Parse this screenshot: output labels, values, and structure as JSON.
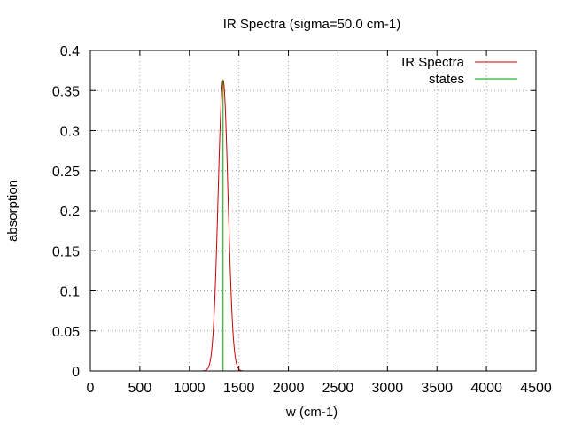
{
  "chart_data": {
    "type": "line",
    "title": "IR Spectra (sigma=50.0 cm-1)",
    "xlabel": "w (cm-1)",
    "ylabel": "absorption",
    "xlim": [
      0,
      4500
    ],
    "ylim": [
      0,
      0.4
    ],
    "xticks": [
      0,
      500,
      1000,
      1500,
      2000,
      2500,
      3000,
      3500,
      4000,
      4500
    ],
    "yticks": [
      0,
      0.05,
      0.1,
      0.15,
      0.2,
      0.25,
      0.3,
      0.35,
      0.4
    ],
    "xtick_labels": [
      "0",
      "500",
      "1000",
      "1500",
      "2000",
      "2500",
      "3000",
      "3500",
      "4000",
      "4500"
    ],
    "ytick_labels": [
      "0",
      "0.05",
      "0.1",
      "0.15",
      "0.2",
      "0.25",
      "0.3",
      "0.35",
      "0.4"
    ],
    "grid": true,
    "legend_position": "top-right",
    "series": [
      {
        "name": "IR Spectra",
        "kind": "gaussian",
        "color": "#cc0000",
        "center": 1340,
        "peak": 0.363,
        "sigma": 50
      },
      {
        "name": "states",
        "kind": "stick",
        "color": "#00a000",
        "x": [
          1340
        ],
        "y": [
          0.363
        ]
      }
    ]
  }
}
